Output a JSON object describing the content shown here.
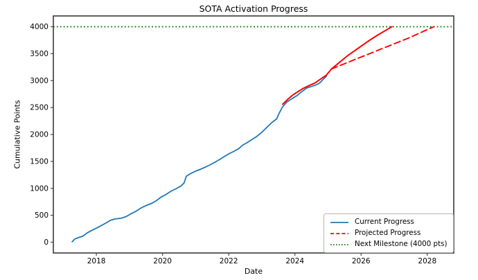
{
  "figure": {
    "background": "#ffffff",
    "frame_color": "#454545"
  },
  "chart_data": {
    "type": "line",
    "title": "SOTA Activation Progress",
    "xlabel": "Date",
    "ylabel": "Cumulative Points",
    "xlim": [
      2016.7,
      2028.8
    ],
    "ylim": [
      -200,
      4200
    ],
    "x_ticks": [
      2018,
      2020,
      2022,
      2024,
      2026,
      2028
    ],
    "y_ticks": [
      0,
      500,
      1000,
      1500,
      2000,
      2500,
      3000,
      3500,
      4000
    ],
    "grid": false,
    "legend_position": "lower right",
    "milestone": {
      "value": 4000,
      "color": "#008000",
      "style": "dotted"
    },
    "series": [
      {
        "name": "Current Progress",
        "color": "#1f77b4",
        "style": "solid",
        "width": 1.8,
        "points": [
          [
            2017.27,
            10
          ],
          [
            2017.35,
            60
          ],
          [
            2017.5,
            95
          ],
          [
            2017.6,
            115
          ],
          [
            2017.72,
            170
          ],
          [
            2017.85,
            215
          ],
          [
            2018.0,
            260
          ],
          [
            2018.15,
            310
          ],
          [
            2018.3,
            360
          ],
          [
            2018.42,
            405
          ],
          [
            2018.55,
            430
          ],
          [
            2018.75,
            445
          ],
          [
            2018.9,
            475
          ],
          [
            2019.05,
            530
          ],
          [
            2019.2,
            575
          ],
          [
            2019.35,
            635
          ],
          [
            2019.5,
            680
          ],
          [
            2019.65,
            715
          ],
          [
            2019.8,
            765
          ],
          [
            2019.95,
            835
          ],
          [
            2020.1,
            885
          ],
          [
            2020.25,
            945
          ],
          [
            2020.4,
            990
          ],
          [
            2020.55,
            1040
          ],
          [
            2020.65,
            1100
          ],
          [
            2020.72,
            1225
          ],
          [
            2020.85,
            1275
          ],
          [
            2021.0,
            1320
          ],
          [
            2021.15,
            1355
          ],
          [
            2021.3,
            1395
          ],
          [
            2021.45,
            1440
          ],
          [
            2021.6,
            1490
          ],
          [
            2021.75,
            1545
          ],
          [
            2021.88,
            1595
          ],
          [
            2022.0,
            1640
          ],
          [
            2022.15,
            1685
          ],
          [
            2022.3,
            1735
          ],
          [
            2022.42,
            1800
          ],
          [
            2022.55,
            1845
          ],
          [
            2022.7,
            1905
          ],
          [
            2022.85,
            1965
          ],
          [
            2023.0,
            2040
          ],
          [
            2023.15,
            2130
          ],
          [
            2023.3,
            2220
          ],
          [
            2023.45,
            2290
          ],
          [
            2023.52,
            2390
          ],
          [
            2023.62,
            2505
          ],
          [
            2023.75,
            2600
          ],
          [
            2023.9,
            2660
          ],
          [
            2024.05,
            2715
          ],
          [
            2024.2,
            2790
          ],
          [
            2024.35,
            2860
          ],
          [
            2024.5,
            2890
          ],
          [
            2024.62,
            2915
          ],
          [
            2024.75,
            2955
          ],
          [
            2024.85,
            3020
          ],
          [
            2024.95,
            3080
          ]
        ]
      },
      {
        "name": "Projected Progress",
        "variant": "solid-segment",
        "color": "#ff0000",
        "style": "solid",
        "width": 2.0,
        "in_legend": false,
        "points": [
          [
            2023.63,
            2560
          ],
          [
            2023.78,
            2650
          ],
          [
            2023.92,
            2725
          ],
          [
            2024.08,
            2790
          ],
          [
            2024.25,
            2855
          ],
          [
            2024.42,
            2905
          ],
          [
            2024.6,
            2955
          ],
          [
            2024.78,
            3030
          ],
          [
            2024.95,
            3100
          ],
          [
            2025.1,
            3215
          ],
          [
            2025.35,
            3340
          ],
          [
            2025.6,
            3465
          ],
          [
            2025.9,
            3595
          ],
          [
            2026.2,
            3725
          ],
          [
            2026.5,
            3845
          ],
          [
            2026.75,
            3935
          ],
          [
            2026.93,
            4000
          ]
        ]
      },
      {
        "name": "Projected Progress",
        "variant": "dashed-projection",
        "color": "#ff0000",
        "style": "dashed",
        "width": 1.9,
        "points": [
          [
            2025.1,
            3215
          ],
          [
            2025.85,
            3400
          ],
          [
            2026.6,
            3585
          ],
          [
            2027.4,
            3780
          ],
          [
            2028.2,
            4000
          ]
        ]
      }
    ],
    "legend": [
      {
        "label": "Current Progress",
        "color": "#1f77b4",
        "style": "solid"
      },
      {
        "label": "Projected Progress",
        "color": "#ff0000",
        "style": "dashed"
      },
      {
        "label": "Next Milestone (4000 pts)",
        "color": "#008000",
        "style": "dotted"
      }
    ]
  }
}
